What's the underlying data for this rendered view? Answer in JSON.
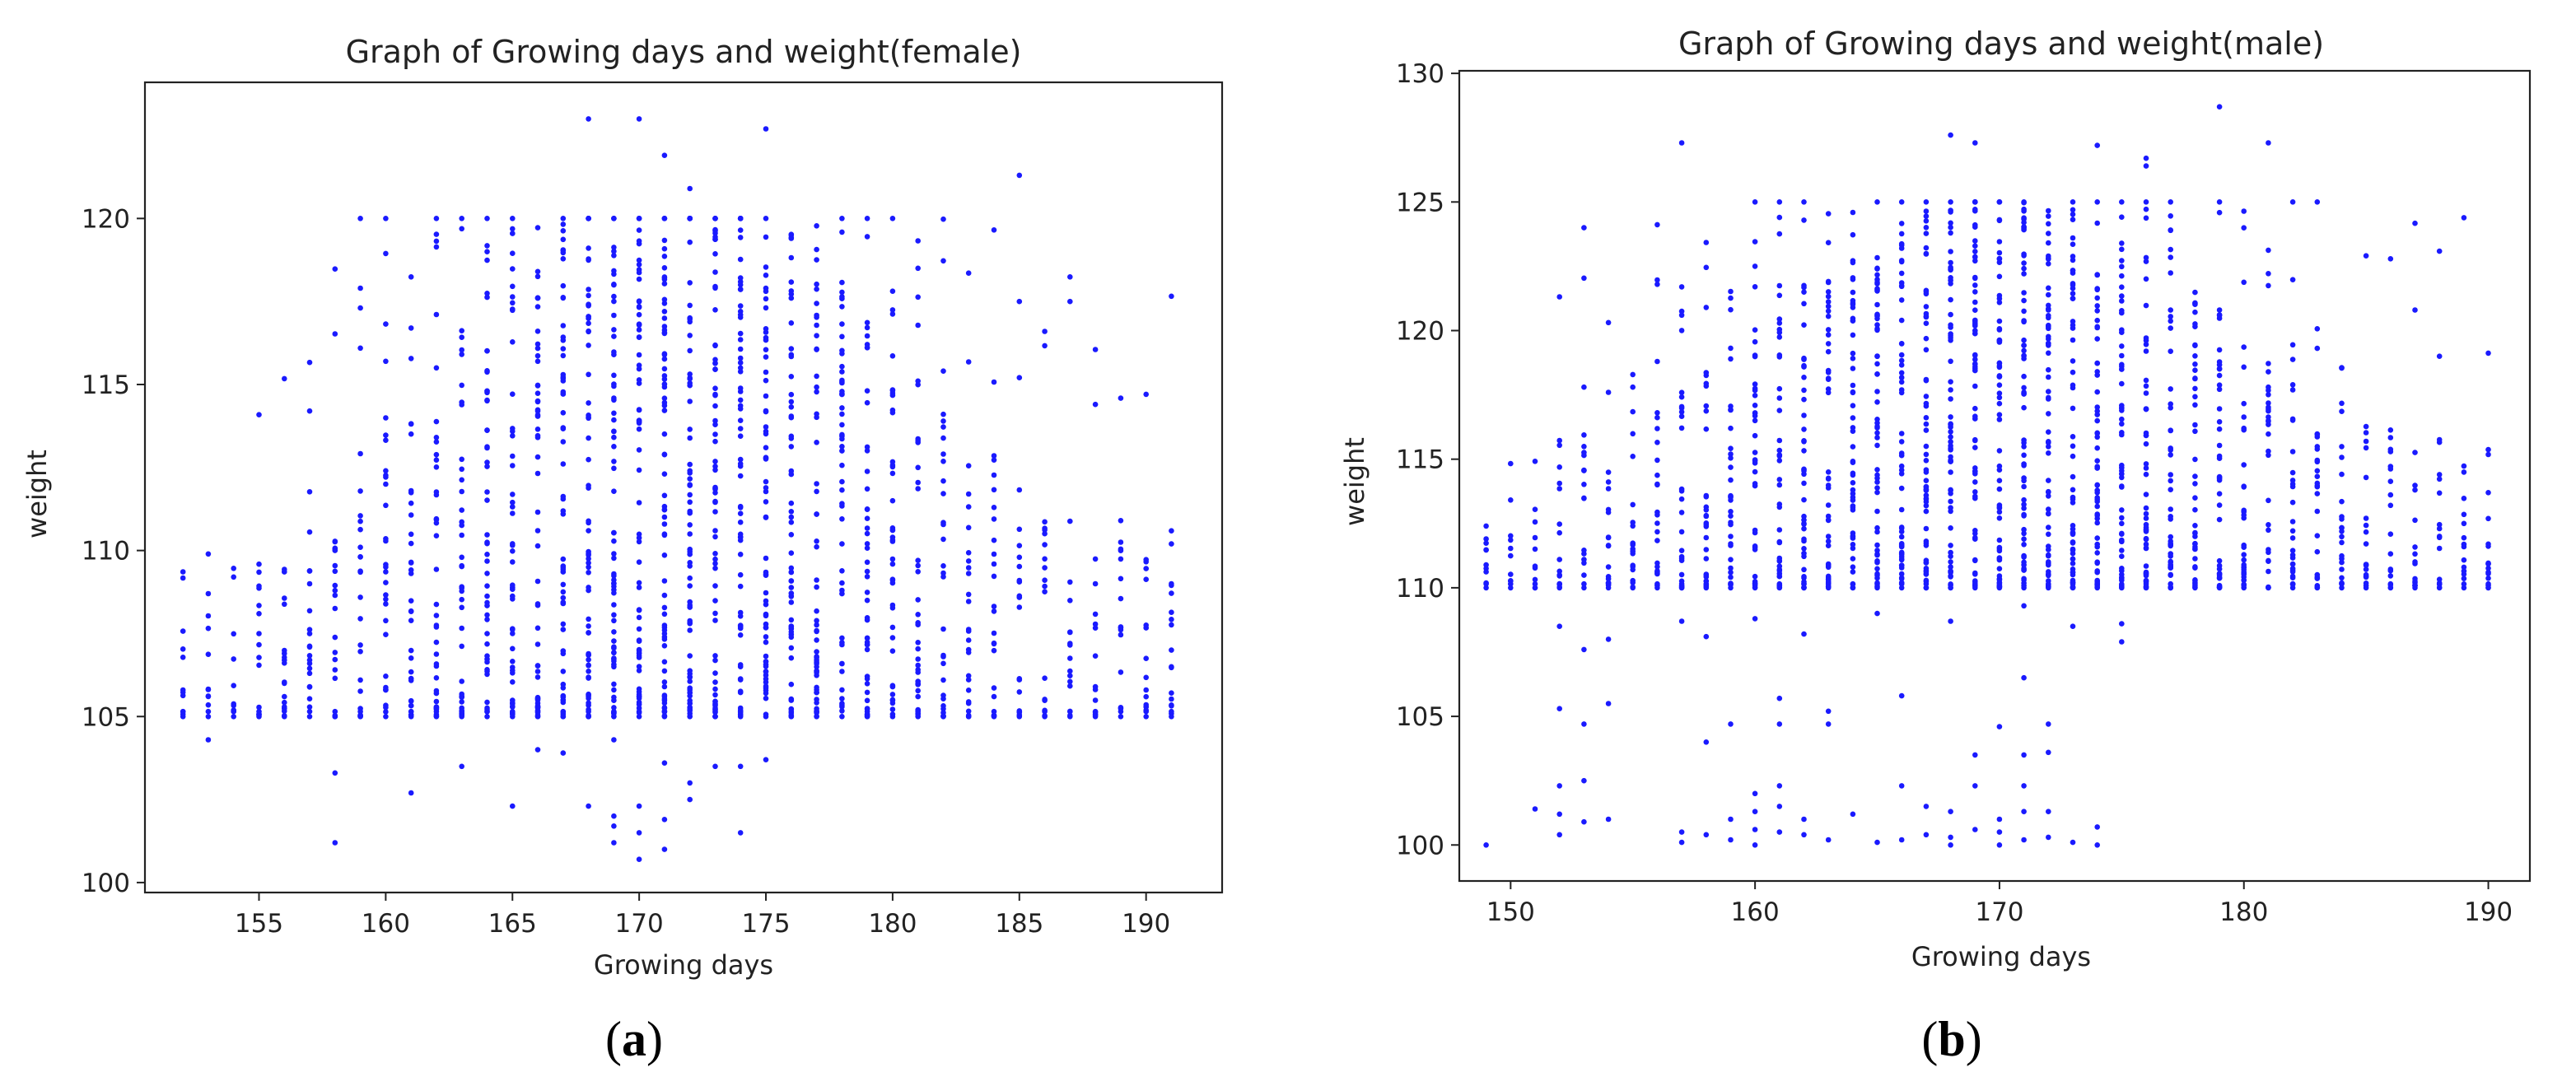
{
  "chart_data": [
    {
      "type": "scatter",
      "title": "Graph of Growing days and weight(female)",
      "xlabel": "Growing days",
      "ylabel": "weight",
      "xlim": [
        150.5,
        193
      ],
      "ylim": [
        99.7,
        124.1
      ],
      "xticks": [
        "155",
        "160",
        "165",
        "170",
        "175",
        "180",
        "185",
        "190"
      ],
      "yticks": [
        "100",
        "105",
        "110",
        "115",
        "120"
      ],
      "color": "#1a1aff",
      "caption": "a",
      "x_min": 152,
      "x_max": 191,
      "weight_floor": 105,
      "weight_cap": 120,
      "points": [
        [
          152,
          105.8
        ],
        [
          153,
          108.7
        ],
        [
          153,
          104.3
        ],
        [
          158,
          101.2
        ],
        [
          158,
          103.3
        ],
        [
          161,
          102.7
        ],
        [
          165,
          102.3
        ],
        [
          168,
          102.3
        ],
        [
          168,
          123.0
        ],
        [
          169,
          101.2
        ],
        [
          169,
          102.0
        ],
        [
          169,
          101.7
        ],
        [
          170,
          100.7
        ],
        [
          170,
          101.5
        ],
        [
          170,
          102.3
        ],
        [
          170,
          123.0
        ],
        [
          171,
          101.0
        ],
        [
          171,
          101.9
        ],
        [
          172,
          102.5
        ],
        [
          171,
          121.9
        ],
        [
          172,
          120.9
        ],
        [
          174,
          101.5
        ],
        [
          175,
          122.7
        ],
        [
          185,
          121.3
        ],
        [
          159,
          117.9
        ],
        [
          164,
          119.0
        ],
        [
          160,
          115.7
        ],
        [
          161,
          116.7
        ],
        [
          162,
          115.5
        ],
        [
          166,
          117.6
        ],
        [
          157,
          114.2
        ],
        [
          156,
          106.7
        ],
        [
          156,
          106.0
        ],
        [
          157,
          106.3
        ],
        [
          157,
          109.0
        ],
        [
          188,
          114.4
        ],
        [
          189,
          110.9
        ],
        [
          189,
          107.7
        ],
        [
          190,
          105.8
        ],
        [
          191,
          110.2
        ],
        [
          191,
          109.0
        ],
        [
          191,
          107.0
        ],
        [
          191,
          106.5
        ],
        [
          187,
          117.5
        ],
        [
          186,
          116.6
        ],
        [
          185,
          117.5
        ],
        [
          181,
          118.5
        ],
        [
          176,
          117.6
        ],
        [
          163,
          103.5
        ],
        [
          166,
          104.0
        ],
        [
          167,
          103.9
        ],
        [
          173,
          103.5
        ],
        [
          175,
          103.7
        ],
        [
          174,
          103.5
        ],
        [
          171,
          103.6
        ],
        [
          169,
          104.3
        ],
        [
          172,
          103.0
        ]
      ]
    },
    {
      "type": "scatter",
      "title": "Graph of Growing days and weight(male)",
      "xlabel": "Growing days",
      "ylabel": "weight",
      "xlim": [
        147.9,
        191.7
      ],
      "ylim": [
        98.6,
        130.1
      ],
      "xticks": [
        "150",
        "160",
        "170",
        "180",
        "190"
      ],
      "yticks": [
        "100",
        "105",
        "110",
        "115",
        "120",
        "125",
        "130"
      ],
      "color": "#1a1aff",
      "caption": "b",
      "x_min": 149,
      "x_max": 190,
      "weight_floor": 110,
      "weight_cap": 125,
      "points": [
        [
          149,
          100.0
        ],
        [
          151,
          101.4
        ],
        [
          152,
          101.2
        ],
        [
          152,
          100.4
        ],
        [
          152,
          102.3
        ],
        [
          152,
          105.3
        ],
        [
          152,
          108.5
        ],
        [
          152,
          110.5
        ],
        [
          153,
          100.9
        ],
        [
          153,
          102.5
        ],
        [
          153,
          104.7
        ],
        [
          153,
          107.6
        ],
        [
          153,
          124.0
        ],
        [
          154,
          101.0
        ],
        [
          154,
          105.5
        ],
        [
          154,
          108.0
        ],
        [
          157,
          100.1
        ],
        [
          157,
          100.5
        ],
        [
          157,
          127.3
        ],
        [
          158,
          100.4
        ],
        [
          158,
          104.0
        ],
        [
          158,
          108.1
        ],
        [
          159,
          101.0
        ],
        [
          159,
          100.2
        ],
        [
          159,
          104.7
        ],
        [
          160,
          100.6
        ],
        [
          160,
          101.3
        ],
        [
          160,
          102.0
        ],
        [
          160,
          100.0
        ],
        [
          161,
          100.5
        ],
        [
          161,
          101.5
        ],
        [
          161,
          102.3
        ],
        [
          161,
          104.7
        ],
        [
          161,
          105.7
        ],
        [
          162,
          100.4
        ],
        [
          162,
          101.0
        ],
        [
          163,
          100.2
        ],
        [
          163,
          104.7
        ],
        [
          163,
          105.2
        ],
        [
          164,
          101.2
        ],
        [
          165,
          100.1
        ],
        [
          166,
          100.2
        ],
        [
          166,
          102.3
        ],
        [
          166,
          105.8
        ],
        [
          167,
          100.4
        ],
        [
          167,
          101.5
        ],
        [
          168,
          100.0
        ],
        [
          168,
          100.3
        ],
        [
          168,
          101.3
        ],
        [
          168,
          127.6
        ],
        [
          169,
          100.6
        ],
        [
          169,
          102.3
        ],
        [
          169,
          103.5
        ],
        [
          169,
          127.3
        ],
        [
          170,
          100.0
        ],
        [
          170,
          100.5
        ],
        [
          170,
          101.0
        ],
        [
          170,
          104.6
        ],
        [
          171,
          100.2
        ],
        [
          171,
          101.3
        ],
        [
          171,
          102.3
        ],
        [
          171,
          103.5
        ],
        [
          171,
          106.5
        ],
        [
          172,
          100.3
        ],
        [
          172,
          101.3
        ],
        [
          172,
          103.6
        ],
        [
          172,
          104.7
        ],
        [
          173,
          100.1
        ],
        [
          174,
          100.0
        ],
        [
          174,
          100.7
        ],
        [
          174,
          127.2
        ],
        [
          176,
          126.4
        ],
        [
          176,
          126.7
        ],
        [
          179,
          128.7
        ],
        [
          181,
          127.3
        ],
        [
          156,
          121.8
        ],
        [
          157,
          121.7
        ],
        [
          157,
          120.6
        ],
        [
          158,
          120.9
        ],
        [
          153,
          117.8
        ],
        [
          154,
          117.6
        ],
        [
          155,
          117.8
        ],
        [
          156,
          118.8
        ],
        [
          159,
          116.2
        ],
        [
          160,
          122.5
        ],
        [
          157,
          108.7
        ],
        [
          160,
          108.8
        ],
        [
          162,
          108.2
        ],
        [
          165,
          109.0
        ],
        [
          168,
          108.7
        ],
        [
          171,
          109.3
        ],
        [
          173,
          108.5
        ],
        [
          175,
          108.6
        ],
        [
          175,
          107.9
        ],
        [
          187,
          120.8
        ],
        [
          188,
          119.0
        ],
        [
          188,
          112.3
        ],
        [
          189,
          112.5
        ],
        [
          189,
          110.8
        ],
        [
          190,
          110.6
        ],
        [
          190,
          111.7
        ],
        [
          190,
          113.7
        ]
      ]
    }
  ]
}
